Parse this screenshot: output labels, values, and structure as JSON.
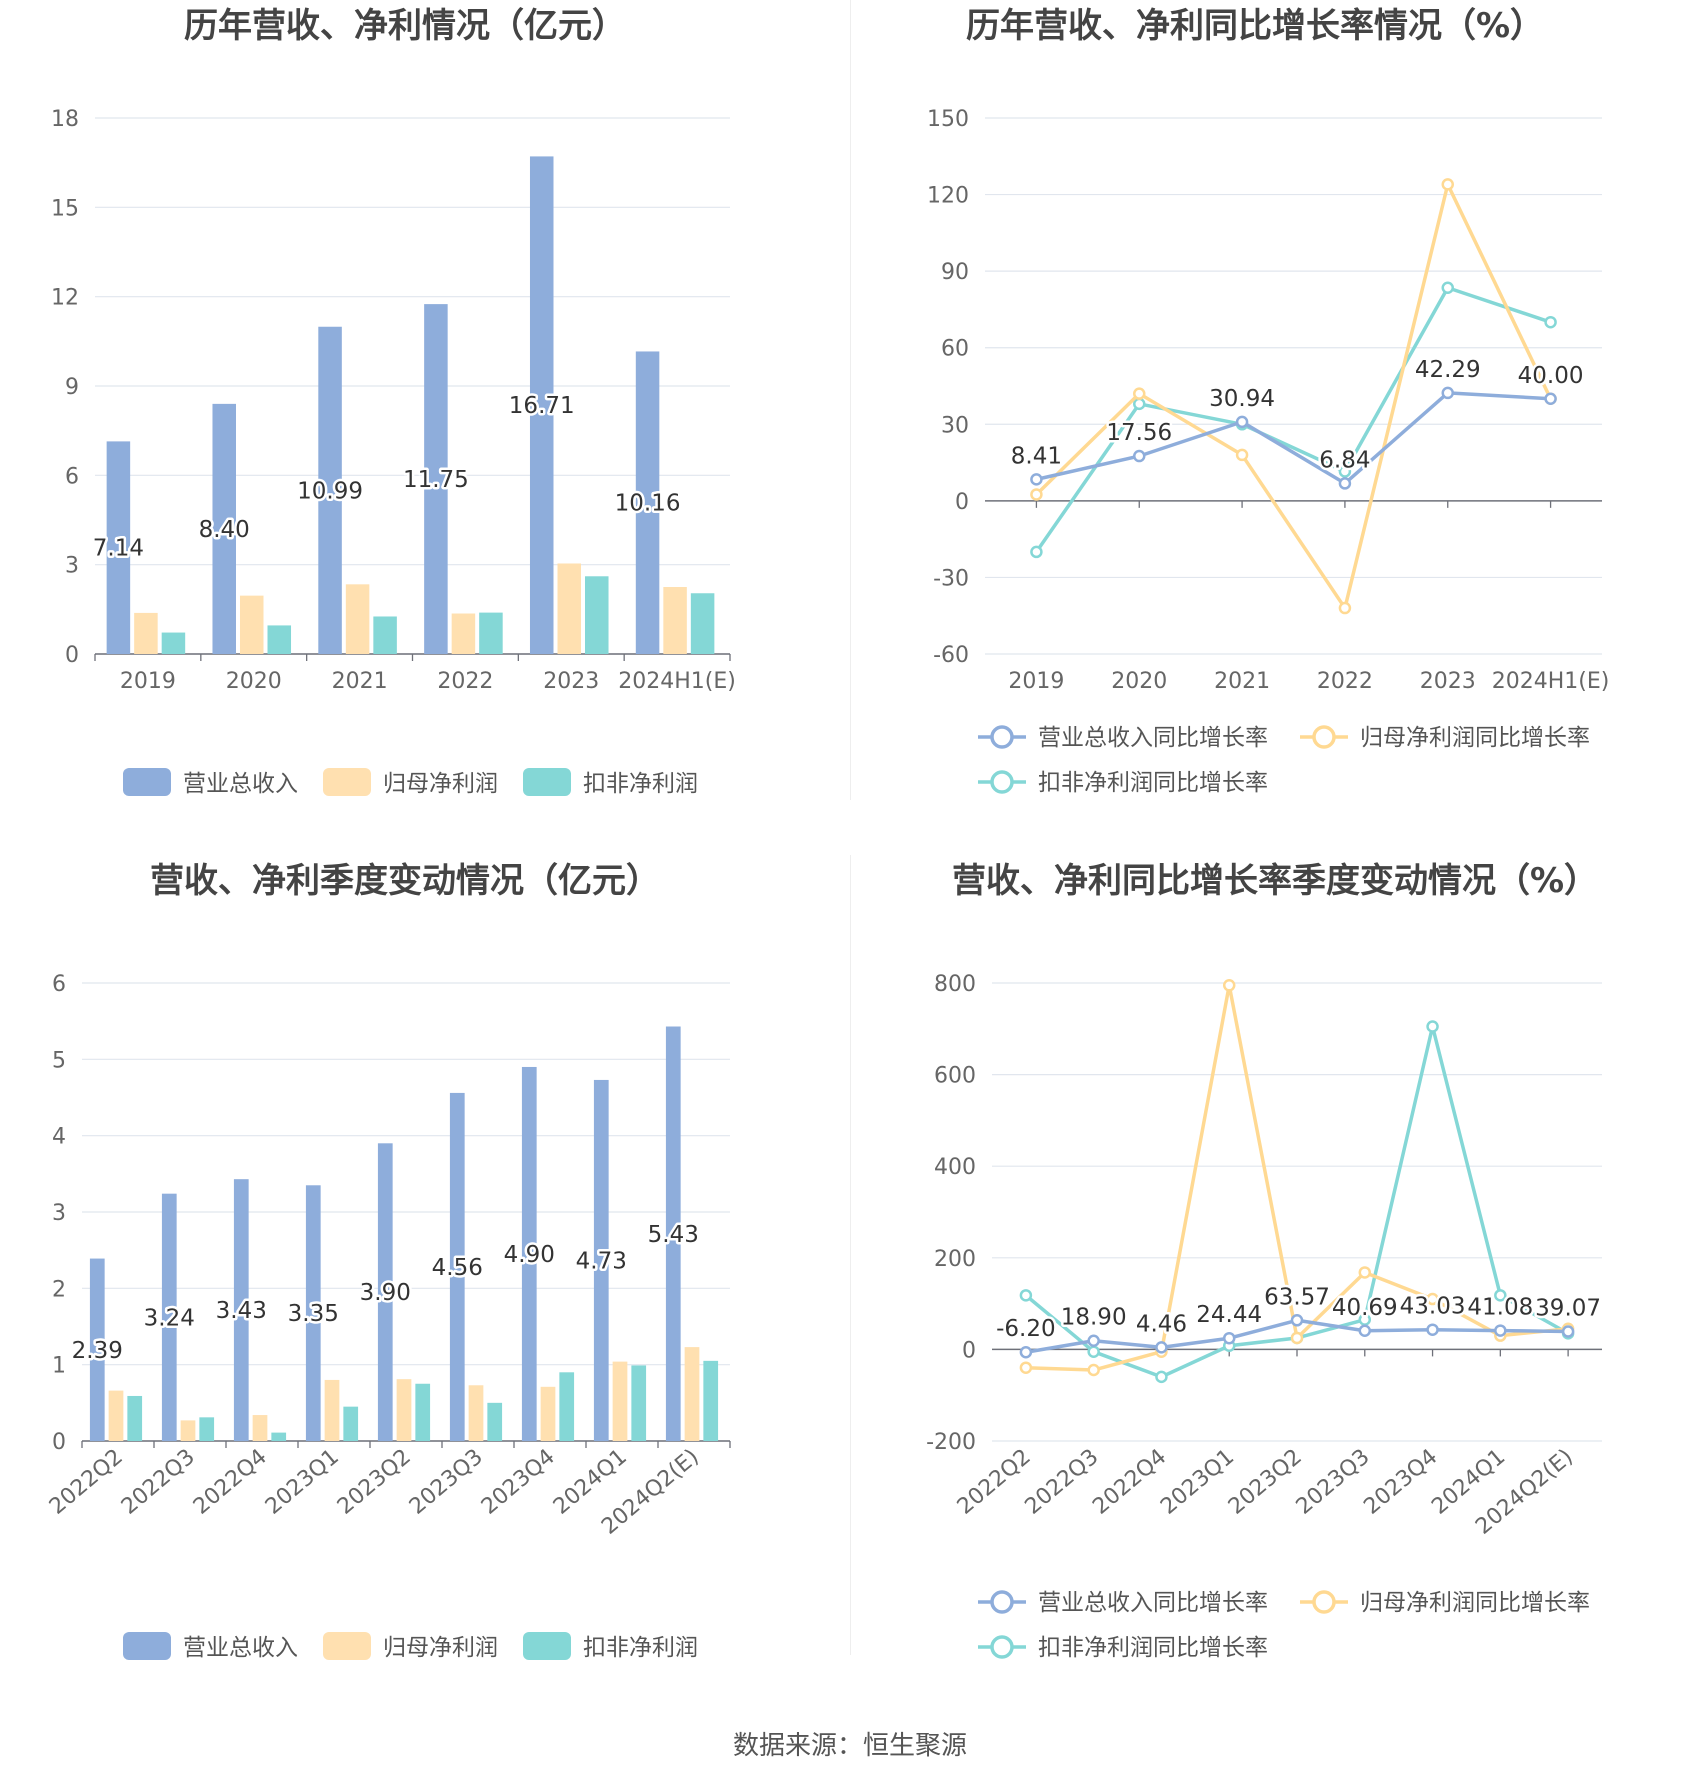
{
  "colors": {
    "revenue": "#8EADDB",
    "net_profit": "#FFE0B0",
    "deducted_profit": "#84D7D6",
    "revenue_line": "#8EADDB",
    "net_profit_line": "#FFD992",
    "deducted_profit_line": "#84D7D6",
    "grid": "#e1e6ee",
    "axis": "#6e7079"
  },
  "source": "数据来源：恒生聚源",
  "chart_data": [
    {
      "id": "annual_values",
      "type": "bar",
      "title": "历年营收、净利情况（亿元）",
      "categories": [
        "2019",
        "2020",
        "2021",
        "2022",
        "2023",
        "2024H1(E)"
      ],
      "ylim": [
        0,
        18
      ],
      "yticks": [
        0,
        3,
        6,
        9,
        12,
        15,
        18
      ],
      "yticks_labels": [
        "0",
        "3",
        "6",
        "9",
        "12",
        "15",
        "18"
      ],
      "grid": true,
      "legend_position": "bottom",
      "label_series": 0,
      "series": [
        {
          "name": "营业总收入",
          "values": [
            7.14,
            8.4,
            10.99,
            11.75,
            16.71,
            10.16
          ],
          "labels": [
            "7.14",
            "8.40",
            "10.99",
            "11.75",
            "16.71",
            "10.16"
          ]
        },
        {
          "name": "归母净利润",
          "values": [
            1.38,
            1.96,
            2.34,
            1.36,
            3.04,
            2.25
          ]
        },
        {
          "name": "扣非净利润",
          "values": [
            0.72,
            0.96,
            1.26,
            1.39,
            2.61,
            2.04
          ]
        }
      ]
    },
    {
      "id": "annual_growth",
      "type": "line",
      "title": "历年营收、净利同比增长率情况（%）",
      "categories": [
        "2019",
        "2020",
        "2021",
        "2022",
        "2023",
        "2024H1(E)"
      ],
      "ylim": [
        -60,
        150
      ],
      "yticks": [
        -60,
        -30,
        0,
        30,
        60,
        90,
        120,
        150
      ],
      "yticks_labels": [
        "-60",
        "-30",
        "0",
        "30",
        "60",
        "90",
        "120",
        "150"
      ],
      "grid": true,
      "legend_position": "bottom",
      "label_series": 0,
      "series": [
        {
          "name": "营业总收入同比增长率",
          "values": [
            8.41,
            17.56,
            30.94,
            6.84,
            42.29,
            40.0
          ],
          "labels": [
            "8.41",
            "17.56",
            "30.94",
            "6.84",
            "42.29",
            "40.00"
          ]
        },
        {
          "name": "归母净利润同比增长率",
          "values": [
            2.5,
            42,
            18,
            -42,
            124,
            40
          ]
        },
        {
          "name": "扣非净利润同比增长率",
          "values": [
            -20,
            38,
            30,
            11.5,
            83.5,
            70
          ]
        }
      ]
    },
    {
      "id": "quarterly_values",
      "type": "bar",
      "title": "营收、净利季度变动情况（亿元）",
      "categories": [
        "2022Q2",
        "2022Q3",
        "2022Q4",
        "2023Q1",
        "2023Q2",
        "2023Q3",
        "2023Q4",
        "2024Q1",
        "2024Q2(E)"
      ],
      "ylim": [
        0,
        6
      ],
      "yticks": [
        0,
        1,
        2,
        3,
        4,
        5,
        6
      ],
      "yticks_labels": [
        "0",
        "1",
        "2",
        "3",
        "4",
        "5",
        "6"
      ],
      "grid": true,
      "legend_position": "bottom",
      "label_series": 0,
      "series": [
        {
          "name": "营业总收入",
          "values": [
            2.39,
            3.24,
            3.43,
            3.35,
            3.9,
            4.56,
            4.9,
            4.73,
            5.43
          ],
          "labels": [
            "2.39",
            "3.24",
            "3.43",
            "3.35",
            "3.90",
            "4.56",
            "4.90",
            "4.73",
            "5.43"
          ]
        },
        {
          "name": "归母净利润",
          "values": [
            0.66,
            0.27,
            0.34,
            0.8,
            0.81,
            0.73,
            0.71,
            1.04,
            1.23
          ]
        },
        {
          "name": "扣非净利润",
          "values": [
            0.59,
            0.31,
            0.11,
            0.45,
            0.75,
            0.5,
            0.9,
            0.99,
            1.05
          ]
        }
      ]
    },
    {
      "id": "quarterly_growth",
      "type": "line",
      "title": "营收、净利同比增长率季度变动情况（%）",
      "categories": [
        "2022Q2",
        "2022Q3",
        "2022Q4",
        "2023Q1",
        "2023Q2",
        "2023Q3",
        "2023Q4",
        "2024Q1",
        "2024Q2(E)"
      ],
      "ylim": [
        -200,
        800
      ],
      "yticks": [
        -200,
        0,
        200,
        400,
        600,
        800
      ],
      "yticks_labels": [
        "-200",
        "0",
        "200",
        "400",
        "600",
        "800"
      ],
      "grid": true,
      "legend_position": "bottom",
      "label_series": 0,
      "series": [
        {
          "name": "营业总收入同比增长率",
          "values": [
            -6.2,
            18.9,
            4.46,
            24.44,
            63.57,
            40.69,
            43.03,
            41.08,
            39.07
          ],
          "labels": [
            "-6.20",
            "18.90",
            "4.46",
            "24.44",
            "63.57",
            "40.69",
            "43.03",
            "41.08",
            "39.07"
          ]
        },
        {
          "name": "归母净利润同比增长率",
          "values": [
            -40,
            -45,
            -5,
            795,
            25,
            168,
            110,
            30,
            45
          ]
        },
        {
          "name": "扣非净利润同比增长率",
          "values": [
            118,
            -5,
            -60,
            8,
            25,
            65,
            705,
            118,
            35
          ]
        }
      ]
    }
  ]
}
